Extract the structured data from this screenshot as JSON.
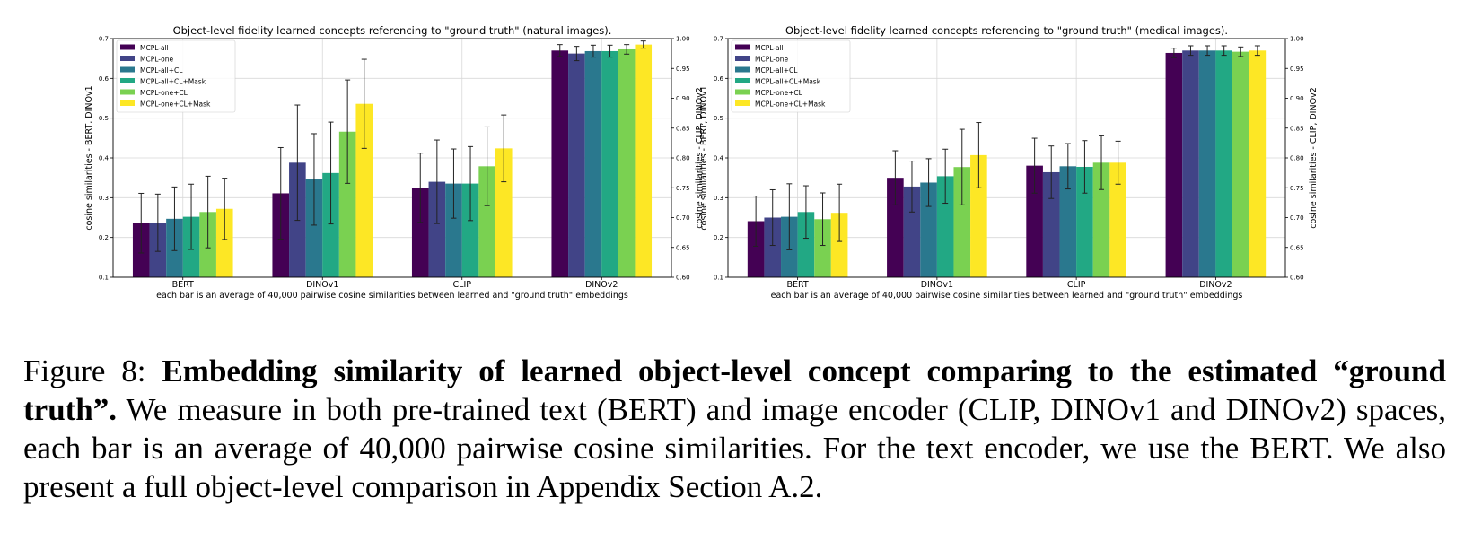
{
  "chart_data": [
    {
      "type": "bar",
      "title": "Object-level fidelity learned concepts referencing to \"ground truth\" (natural images).",
      "xlabel": "each bar is an average of 40,000 pairwise cosine similarities between learned and \"ground truth\" embeddings",
      "ylabel_left": "cosine similarities - BERT, DINOv1",
      "ylabel_right": "cosine similarities - CLIP, DINOv2",
      "ylim_left": [
        0.1,
        0.7
      ],
      "ylim_right": [
        0.6,
        1.0
      ],
      "yticks_left": [
        "0.1",
        "0.2",
        "0.3",
        "0.4",
        "0.5",
        "0.6",
        "0.7"
      ],
      "yticks_right": [
        "0.60",
        "0.65",
        "0.70",
        "0.75",
        "0.80",
        "0.85",
        "0.90",
        "0.95",
        "1.00"
      ],
      "categories": [
        "BERT",
        "DINOv1",
        "CLIP",
        "DINOv2"
      ],
      "category_axis": [
        "left",
        "left",
        "right",
        "right"
      ],
      "grid": true,
      "legend_position": "top-left",
      "series": [
        {
          "name": "MCPL-all",
          "color": "#440154",
          "values": [
            0.236,
            0.311,
            0.75,
            0.98
          ],
          "err": [
            0.075,
            0.115,
            0.058,
            0.01
          ]
        },
        {
          "name": "MCPL-one",
          "color": "#414487",
          "values": [
            0.237,
            0.388,
            0.76,
            0.975
          ],
          "err": [
            0.072,
            0.145,
            0.07,
            0.012
          ]
        },
        {
          "name": "MCPL-all+CL",
          "color": "#2a788e",
          "values": [
            0.247,
            0.346,
            0.757,
            0.979
          ],
          "err": [
            0.08,
            0.115,
            0.058,
            0.01
          ]
        },
        {
          "name": "MCPL-all+CL+Mask",
          "color": "#22a884",
          "values": [
            0.252,
            0.362,
            0.757,
            0.979
          ],
          "err": [
            0.082,
            0.128,
            0.062,
            0.01
          ]
        },
        {
          "name": "MCPL-one+CL",
          "color": "#7ad151",
          "values": [
            0.264,
            0.466,
            0.786,
            0.982
          ],
          "err": [
            0.09,
            0.13,
            0.066,
            0.008
          ]
        },
        {
          "name": "MCPL-one+CL+Mask",
          "color": "#fde725",
          "values": [
            0.272,
            0.536,
            0.816,
            0.99
          ],
          "err": [
            0.077,
            0.112,
            0.056,
            0.006
          ]
        }
      ]
    },
    {
      "type": "bar",
      "title": "Object-level fidelity learned concepts referencing to \"ground truth\" (medical images).",
      "xlabel": "each bar is an average of 40,000 pairwise cosine similarities between learned and \"ground truth\" embeddings",
      "ylabel_left": "cosine similarities - BERT, DINOv1",
      "ylabel_right": "cosine similarities - CLIP, DINOv2",
      "ylim_left": [
        0.1,
        0.7
      ],
      "ylim_right": [
        0.6,
        1.0
      ],
      "yticks_left": [
        "0.1",
        "0.2",
        "0.3",
        "0.4",
        "0.5",
        "0.6",
        "0.7"
      ],
      "yticks_right": [
        "0.60",
        "0.65",
        "0.70",
        "0.75",
        "0.80",
        "0.85",
        "0.90",
        "0.95",
        "1.00"
      ],
      "categories": [
        "BERT",
        "DINOv1",
        "CLIP",
        "DINOv2"
      ],
      "category_axis": [
        "left",
        "left",
        "right",
        "right"
      ],
      "grid": true,
      "legend_position": "top-left",
      "series": [
        {
          "name": "MCPL-all",
          "color": "#440154",
          "values": [
            0.241,
            0.35,
            0.787,
            0.976
          ],
          "err": [
            0.063,
            0.068,
            0.046,
            0.008
          ]
        },
        {
          "name": "MCPL-one",
          "color": "#414487",
          "values": [
            0.25,
            0.328,
            0.776,
            0.98
          ],
          "err": [
            0.07,
            0.064,
            0.044,
            0.008
          ]
        },
        {
          "name": "MCPL-all+CL",
          "color": "#2a788e",
          "values": [
            0.252,
            0.338,
            0.786,
            0.98
          ],
          "err": [
            0.083,
            0.06,
            0.038,
            0.008
          ]
        },
        {
          "name": "MCPL-all+CL+Mask",
          "color": "#22a884",
          "values": [
            0.264,
            0.354,
            0.785,
            0.98
          ],
          "err": [
            0.066,
            0.068,
            0.044,
            0.008
          ]
        },
        {
          "name": "MCPL-one+CL",
          "color": "#7ad151",
          "values": [
            0.246,
            0.377,
            0.792,
            0.978
          ],
          "err": [
            0.066,
            0.095,
            0.045,
            0.008
          ]
        },
        {
          "name": "MCPL-one+CL+Mask",
          "color": "#fde725",
          "values": [
            0.262,
            0.407,
            0.792,
            0.98
          ],
          "err": [
            0.072,
            0.082,
            0.036,
            0.008
          ]
        }
      ]
    }
  ],
  "caption": {
    "label": "Figure 8: ",
    "bold": "Embedding similarity of learned object-level concept comparing to the estimated “ground truth”.",
    "text": " We measure in both pre-trained text (BERT) and image encoder (CLIP, DINOv1 and DINOv2) spaces, each bar is an average of 40,000 pairwise cosine similarities. For the text encoder, we use the BERT. We also present a full object-level comparison in Appendix Section A.2."
  }
}
